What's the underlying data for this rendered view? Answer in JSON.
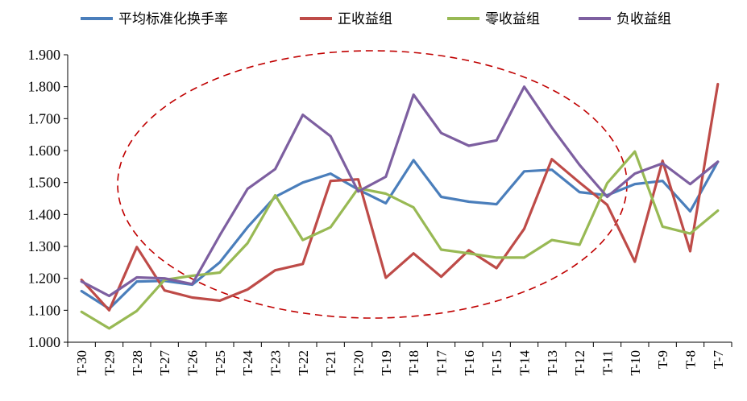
{
  "chart_data": {
    "type": "line",
    "categories": [
      "T-30",
      "T-29",
      "T-28",
      "T-27",
      "T-26",
      "T-25",
      "T-24",
      "T-23",
      "T-22",
      "T-21",
      "T-20",
      "T-19",
      "T-18",
      "T-17",
      "T-16",
      "T-15",
      "T-14",
      "T-13",
      "T-12",
      "T-11",
      "T-10",
      "T-9",
      "T-8",
      "T-7"
    ],
    "ylim": [
      1.0,
      1.9
    ],
    "yticks": [
      "1.000",
      "1.100",
      "1.200",
      "1.300",
      "1.400",
      "1.500",
      "1.600",
      "1.700",
      "1.800",
      "1.900"
    ],
    "legend_position": "top",
    "grid": false,
    "annotation": "dashed red ellipse",
    "series": [
      {
        "name": "平均标准化换手率",
        "color": "#4a7ebb",
        "values": [
          1.16,
          1.105,
          1.19,
          1.192,
          1.18,
          1.25,
          1.36,
          1.455,
          1.5,
          1.528,
          1.478,
          1.435,
          1.57,
          1.455,
          1.44,
          1.432,
          1.535,
          1.54,
          1.47,
          1.46,
          1.495,
          1.505,
          1.41,
          1.565
        ]
      },
      {
        "name": "正收益组",
        "color": "#be4b48",
        "values": [
          1.195,
          1.1,
          1.298,
          1.162,
          1.14,
          1.13,
          1.165,
          1.225,
          1.245,
          1.505,
          1.51,
          1.202,
          1.278,
          1.205,
          1.288,
          1.232,
          1.355,
          1.573,
          1.5,
          1.43,
          1.252,
          1.568,
          1.285,
          1.808
        ]
      },
      {
        "name": "零收益组",
        "color": "#98b954",
        "values": [
          1.095,
          1.043,
          1.098,
          1.195,
          1.208,
          1.218,
          1.31,
          1.46,
          1.32,
          1.36,
          1.482,
          1.465,
          1.422,
          1.29,
          1.278,
          1.265,
          1.265,
          1.32,
          1.305,
          1.498,
          1.597,
          1.362,
          1.34,
          1.412
        ]
      },
      {
        "name": "负收益组",
        "color": "#7d5fa0",
        "values": [
          1.19,
          1.145,
          1.203,
          1.2,
          1.182,
          1.335,
          1.48,
          1.542,
          1.712,
          1.645,
          1.472,
          1.518,
          1.775,
          1.655,
          1.615,
          1.632,
          1.8,
          1.672,
          1.555,
          1.455,
          1.528,
          1.56,
          1.495,
          1.565
        ]
      }
    ]
  }
}
